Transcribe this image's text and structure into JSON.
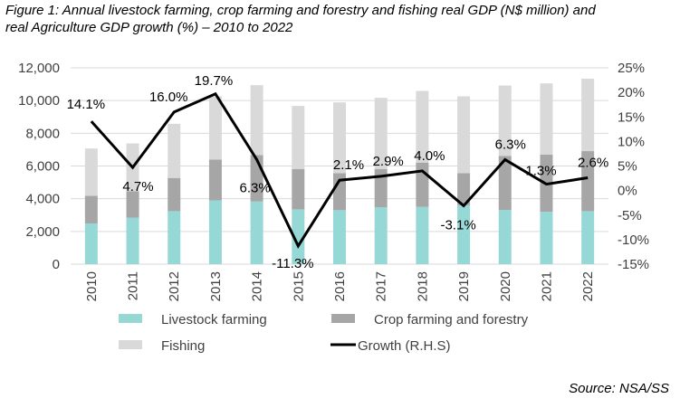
{
  "title_line1": "Figure 1: Annual livestock farming, crop farming and forestry and fishing real GDP (N$ million) and",
  "title_line2": "real Agriculture GDP growth (%) – 2010 to 2022",
  "source": "Source: NSA/SS",
  "chart_data": {
    "type": "bar",
    "stacked": true,
    "categories": [
      "2010",
      "2011",
      "2012",
      "2013",
      "2014",
      "2015",
      "2016",
      "2017",
      "2018",
      "2019",
      "2020",
      "2021",
      "2022"
    ],
    "series": [
      {
        "name": "Livestock farming",
        "color": "#96d8d6",
        "values": [
          2490,
          2840,
          3240,
          3900,
          3830,
          3350,
          3300,
          3480,
          3500,
          3600,
          3310,
          3200,
          3240
        ]
      },
      {
        "name": "Crop farming and forestry",
        "color": "#a6a6a6",
        "values": [
          1690,
          1620,
          2030,
          2490,
          2840,
          2470,
          2260,
          2340,
          2710,
          1960,
          3300,
          3500,
          3670
        ]
      },
      {
        "name": "Fishing",
        "color": "#d9d9d9",
        "values": [
          2890,
          2920,
          3310,
          3870,
          4270,
          3850,
          4330,
          4350,
          4380,
          4700,
          4310,
          4350,
          4430
        ]
      },
      {
        "name": "Growth (R.H.S)",
        "type": "line",
        "axis": "right",
        "color": "#000000",
        "values": [
          14.1,
          4.7,
          16.0,
          19.7,
          6.3,
          -11.3,
          2.1,
          2.9,
          4.0,
          -3.1,
          6.3,
          1.3,
          2.6
        ],
        "labels": [
          "14.1%",
          "4.7%",
          "16.0%",
          "19.7%",
          "6.3%",
          "-11.3%",
          "2.1%",
          "2.9%",
          "4.0%",
          "-3.1%",
          "6.3%",
          "1.3%",
          "2.6%"
        ]
      }
    ],
    "ylim": [
      0,
      12000
    ],
    "yticks": [
      "0",
      "2,000",
      "4,000",
      "6,000",
      "8,000",
      "10,000",
      "12,000"
    ],
    "y2lim": [
      -15,
      25
    ],
    "y2ticks": [
      "-15%",
      "-10%",
      "-5%",
      "0%",
      "5%",
      "10%",
      "15%",
      "20%",
      "25%"
    ],
    "grid": true,
    "legend": "bottom"
  }
}
